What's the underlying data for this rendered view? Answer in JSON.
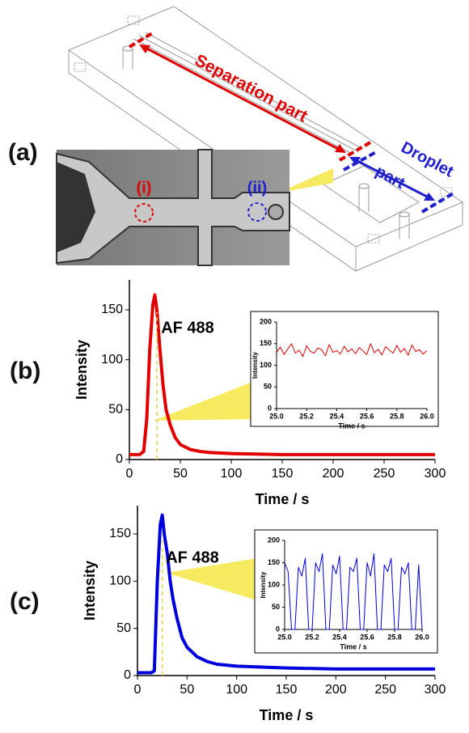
{
  "diagram": {
    "label": "(a)",
    "separation": "Separation part",
    "droplet": "Droplet",
    "part": "part",
    "point_i": "(i)",
    "point_ii": "(ii)"
  },
  "chart_data": [
    {
      "type": "line",
      "panel_label": "(b)",
      "annotation": "AF 488",
      "xlabel": "Time / s",
      "ylabel": "Intensity",
      "x": [
        0,
        5,
        10,
        14,
        17,
        20,
        23,
        25,
        27,
        30,
        33,
        36,
        40,
        45,
        50,
        60,
        70,
        80,
        100,
        150,
        200,
        250,
        300
      ],
      "series": [
        {
          "color": "#e00000",
          "values": [
            5,
            5,
            5,
            8,
            40,
            110,
            155,
            165,
            150,
            110,
            75,
            50,
            35,
            22,
            15,
            10,
            8,
            7,
            6,
            5,
            5,
            5,
            5
          ]
        }
      ],
      "xlim": [
        0,
        300
      ],
      "ylim": [
        0,
        180
      ],
      "xticks": [
        0,
        50,
        100,
        150,
        200,
        250,
        300
      ],
      "yticks": [
        0,
        50,
        100,
        150
      ],
      "marker_x": 27,
      "inset": {
        "type": "line",
        "xlabel": "Time / s",
        "ylabel": "Intensity",
        "x": [
          25,
          25.025,
          25.05,
          25.075,
          25.1,
          25.125,
          25.15,
          25.175,
          25.2,
          25.225,
          25.25,
          25.275,
          25.3,
          25.325,
          25.35,
          25.375,
          25.4,
          25.425,
          25.45,
          25.475,
          25.5,
          25.525,
          25.55,
          25.575,
          25.6,
          25.625,
          25.65,
          25.675,
          25.7,
          25.725,
          25.75,
          25.775,
          25.8,
          25.825,
          25.85,
          25.875,
          25.9,
          25.925,
          25.95,
          25.975,
          26
        ],
        "series": [
          {
            "color": "#e00000",
            "values": [
              130,
              142,
              125,
              138,
              150,
              128,
              135,
              120,
              145,
              132,
              128,
              140,
              136,
              122,
              148,
              130,
              134,
              126,
              144,
              131,
              138,
              127,
              141,
              133,
              125,
              150,
              129,
              137,
              124,
              143,
              135,
              128,
              146,
              130,
              139,
              123,
              147,
              132,
              136,
              126,
              134
            ]
          }
        ],
        "xlim": [
          25,
          26
        ],
        "ylim": [
          0,
          200
        ],
        "xticks": [
          {
            "value": 25,
            "label": "25.0"
          },
          {
            "value": 25.2,
            "label": "25.2"
          },
          {
            "value": 25.4,
            "label": "25.4"
          },
          {
            "value": 25.6,
            "label": "25.6"
          },
          {
            "value": 25.8,
            "label": "25.8"
          },
          {
            "value": 26,
            "label": "26.0"
          }
        ],
        "yticks": [
          0,
          50,
          100,
          150,
          200
        ]
      }
    },
    {
      "type": "line",
      "panel_label": "(c)",
      "annotation": "AF 488",
      "xlabel": "Time / s",
      "ylabel": "Intensity",
      "x": [
        0,
        5,
        10,
        14,
        17,
        20,
        23,
        25,
        27,
        30,
        33,
        36,
        40,
        45,
        50,
        60,
        70,
        80,
        100,
        150,
        200,
        250,
        300
      ],
      "series": [
        {
          "color": "#0000dd",
          "values": [
            3,
            3,
            3,
            3,
            5,
            100,
            160,
            170,
            150,
            130,
            100,
            80,
            60,
            40,
            30,
            20,
            15,
            12,
            10,
            8,
            7,
            7,
            7
          ]
        }
      ],
      "xlim": [
        0,
        300
      ],
      "ylim": [
        0,
        180
      ],
      "xticks": [
        0,
        50,
        100,
        150,
        200,
        250,
        300
      ],
      "yticks": [
        0,
        50,
        100,
        150
      ],
      "marker_x": 25,
      "inset": {
        "type": "line",
        "xlabel": "Time / s",
        "ylabel": "Intensity",
        "x": [
          25,
          25.025,
          25.05,
          25.075,
          25.1,
          25.125,
          25.15,
          25.175,
          25.2,
          25.225,
          25.25,
          25.275,
          25.3,
          25.325,
          25.35,
          25.375,
          25.4,
          25.425,
          25.45,
          25.475,
          25.5,
          25.525,
          25.55,
          25.575,
          25.6,
          25.625,
          25.65,
          25.675,
          25.7,
          25.725,
          25.75,
          25.775,
          25.8,
          25.825,
          25.85,
          25.875,
          25.9,
          25.925,
          25.95,
          25.975,
          26
        ],
        "series": [
          {
            "color": "#0000dd",
            "values": [
              150,
              130,
              0,
              0,
              140,
              120,
              160,
              0,
              0,
              150,
              130,
              170,
              0,
              0,
              145,
              125,
              165,
              0,
              0,
              140,
              130,
              160,
              0,
              0,
              150,
              120,
              170,
              0,
              0,
              145,
              130,
              160,
              0,
              0,
              140,
              125,
              150,
              0,
              0,
              145,
              0
            ]
          }
        ],
        "xlim": [
          25,
          26
        ],
        "ylim": [
          0,
          200
        ],
        "xticks": [
          {
            "value": 25,
            "label": "25.0"
          },
          {
            "value": 25.2,
            "label": "25.2"
          },
          {
            "value": 25.4,
            "label": "25.4"
          },
          {
            "value": 25.6,
            "label": "25.6"
          },
          {
            "value": 25.8,
            "label": "25.8"
          },
          {
            "value": 26,
            "label": "26.0"
          }
        ],
        "yticks": [
          0,
          50,
          100,
          150,
          200
        ]
      }
    }
  ]
}
